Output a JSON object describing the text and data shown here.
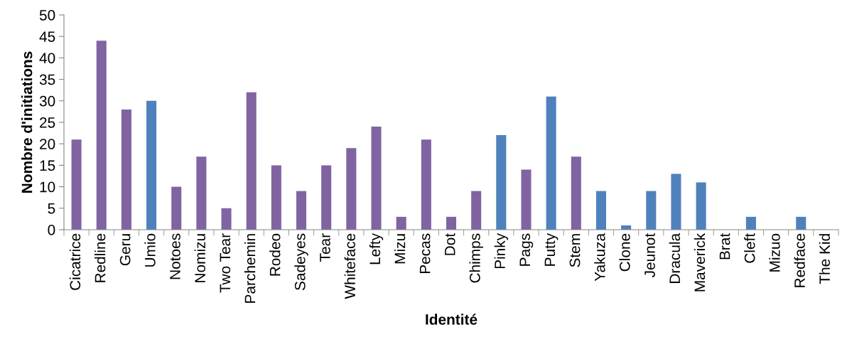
{
  "chart_data": {
    "type": "bar",
    "xlabel": "Identité",
    "ylabel": "Nombre d'initiations",
    "categories": [
      "Cicatrice",
      "Redline",
      "Geru",
      "Umio",
      "Notoes",
      "Nomizu",
      "Two Tear",
      "Parchemin",
      "Rodeo",
      "Sadeyes",
      "Tear",
      "Whiteface",
      "Lefty",
      "Mizu",
      "Pecas",
      "Dot",
      "Chimps",
      "Pinky",
      "Pags",
      "Putty",
      "Stem",
      "Yakuza",
      "Clone",
      "Jeunot",
      "Dracula",
      "Maverick",
      "Brat",
      "Cleft",
      "Mizuo",
      "Redface",
      "The Kid"
    ],
    "values": [
      21,
      44,
      28,
      30,
      10,
      17,
      5,
      32,
      15,
      9,
      15,
      19,
      24,
      3,
      21,
      3,
      9,
      22,
      14,
      31,
      17,
      9,
      1,
      9,
      13,
      11,
      0,
      3,
      0,
      3,
      0
    ],
    "colors": [
      "#8064a2",
      "#8064a2",
      "#8064a2",
      "#4f81bd",
      "#8064a2",
      "#8064a2",
      "#8064a2",
      "#8064a2",
      "#8064a2",
      "#8064a2",
      "#8064a2",
      "#8064a2",
      "#8064a2",
      "#8064a2",
      "#8064a2",
      "#8064a2",
      "#8064a2",
      "#4f81bd",
      "#8064a2",
      "#4f81bd",
      "#8064a2",
      "#4f81bd",
      "#4f81bd",
      "#4f81bd",
      "#4f81bd",
      "#4f81bd",
      "#4f81bd",
      "#4f81bd",
      "#4f81bd",
      "#4f81bd",
      "#4f81bd"
    ],
    "ylim": [
      0,
      50
    ],
    "yticks": [
      0,
      5,
      10,
      15,
      20,
      25,
      30,
      35,
      40,
      45,
      50
    ],
    "grid": false
  }
}
